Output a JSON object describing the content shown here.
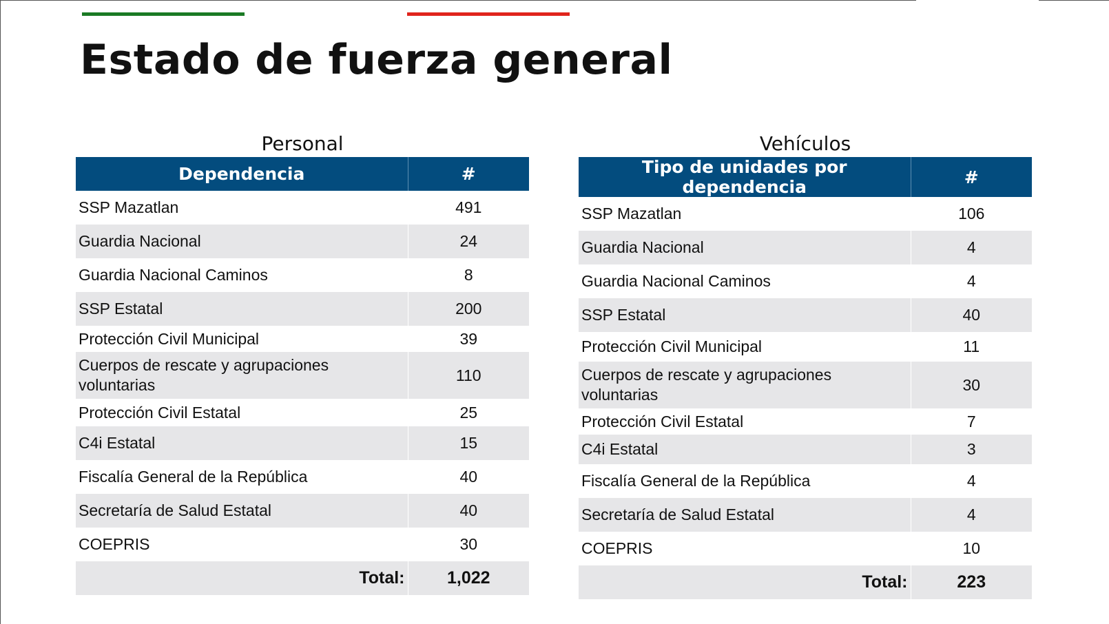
{
  "title": "Estado de fuerza general",
  "personal": {
    "section_title": "Personal",
    "headers": {
      "name": "Dependencia",
      "count": "#"
    },
    "rows": [
      {
        "name": "SSP Mazatlan",
        "count": "491"
      },
      {
        "name": "Guardia Nacional",
        "count": "24"
      },
      {
        "name": "Guardia Nacional Caminos",
        "count": "8"
      },
      {
        "name": "SSP Estatal",
        "count": "200"
      },
      {
        "name": "Protección Civil Municipal",
        "count": "39"
      },
      {
        "name": "Cuerpos de rescate y agrupaciones voluntarias",
        "count": "110"
      },
      {
        "name": "Protección Civil Estatal",
        "count": "25"
      },
      {
        "name": "C4i Estatal",
        "count": "15"
      },
      {
        "name": "Fiscalía General de la República",
        "count": "40"
      },
      {
        "name": "Secretaría de Salud Estatal",
        "count": "40"
      },
      {
        "name": "COEPRIS",
        "count": "30"
      }
    ],
    "total_label": "Total:",
    "total_value": "1,022"
  },
  "vehiculos": {
    "section_title": "Vehículos",
    "headers": {
      "name": "Tipo de unidades por dependencia",
      "count": "#"
    },
    "rows": [
      {
        "name": "SSP Mazatlan",
        "count": "106"
      },
      {
        "name": "Guardia Nacional",
        "count": "4"
      },
      {
        "name": "Guardia Nacional Caminos",
        "count": "4"
      },
      {
        "name": "SSP Estatal",
        "count": "40"
      },
      {
        "name": "Protección Civil Municipal",
        "count": "11"
      },
      {
        "name": "Cuerpos de rescate y agrupaciones voluntarias",
        "count": "30"
      },
      {
        "name": "Protección Civil Estatal",
        "count": "7"
      },
      {
        "name": "C4i Estatal",
        "count": "3"
      },
      {
        "name": "Fiscalía General de la República",
        "count": "4"
      },
      {
        "name": "Secretaría de Salud Estatal",
        "count": "4"
      },
      {
        "name": "COEPRIS",
        "count": "10"
      }
    ],
    "total_label": "Total:",
    "total_value": "223"
  },
  "colors": {
    "header_bg": "#034c7e",
    "row_shade": "#e6e6e8",
    "accent_green": "#1a7a24",
    "accent_red": "#e0241c"
  }
}
